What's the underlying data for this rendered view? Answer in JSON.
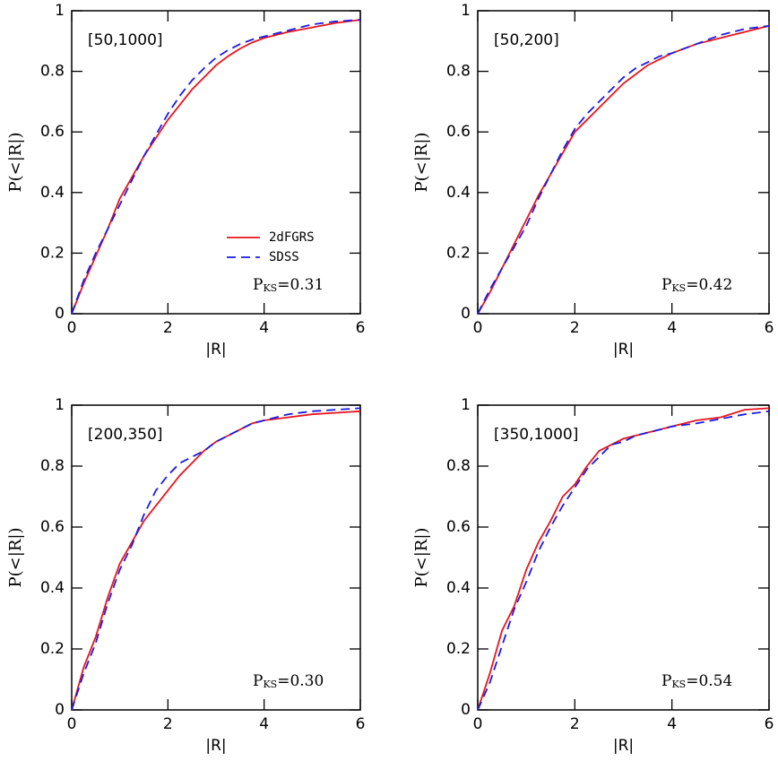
{
  "chart_data": [
    {
      "type": "line",
      "annotation": "[50,1000]",
      "ks_annotation": {
        "symbol": "P",
        "subscript": "KS",
        "value": "=0.31"
      },
      "x_label": "|R|",
      "y_label": "P(<|R|)",
      "x": [
        0,
        0.25,
        0.5,
        0.75,
        1,
        1.25,
        1.5,
        1.75,
        2,
        2.25,
        2.5,
        2.75,
        3,
        3.25,
        3.5,
        3.75,
        4,
        4.5,
        5,
        5.5,
        6
      ],
      "series": [
        {
          "name": "2dFGRS",
          "color": "#e8141c",
          "style": "solid",
          "values": [
            0,
            0.1,
            0.19,
            0.28,
            0.38,
            0.45,
            0.52,
            0.58,
            0.64,
            0.69,
            0.74,
            0.78,
            0.82,
            0.85,
            0.875,
            0.895,
            0.91,
            0.93,
            0.945,
            0.96,
            0.97
          ]
        },
        {
          "name": "SDSS",
          "color": "#1a1ae6",
          "style": "dashed",
          "values": [
            0,
            0.11,
            0.2,
            0.28,
            0.36,
            0.44,
            0.52,
            0.59,
            0.66,
            0.72,
            0.77,
            0.81,
            0.845,
            0.87,
            0.89,
            0.905,
            0.915,
            0.935,
            0.955,
            0.965,
            0.97
          ]
        }
      ],
      "xlim": [
        0,
        6
      ],
      "ylim": [
        0,
        1
      ],
      "xticks": [
        0,
        2,
        4,
        6
      ],
      "yticks": [
        0,
        0.2,
        0.4,
        0.6,
        0.8,
        1
      ]
    },
    {
      "type": "line",
      "annotation": "[50,200]",
      "ks_annotation": {
        "symbol": "P",
        "subscript": "KS",
        "value": "=0.42"
      },
      "x_label": "|R|",
      "y_label": "P(<|R|)",
      "x": [
        0,
        0.25,
        0.5,
        0.75,
        1,
        1.25,
        1.5,
        1.75,
        2,
        2.25,
        2.5,
        2.75,
        3,
        3.25,
        3.5,
        3.75,
        4,
        4.5,
        5,
        5.5,
        6
      ],
      "series": [
        {
          "color": "#e8141c",
          "style": "solid",
          "values": [
            0,
            0.07,
            0.15,
            0.23,
            0.31,
            0.39,
            0.46,
            0.53,
            0.6,
            0.64,
            0.68,
            0.72,
            0.76,
            0.79,
            0.82,
            0.84,
            0.86,
            0.89,
            0.91,
            0.93,
            0.95
          ]
        },
        {
          "color": "#1a1ae6",
          "style": "dashed",
          "values": [
            0,
            0.08,
            0.15,
            0.22,
            0.29,
            0.38,
            0.46,
            0.54,
            0.61,
            0.66,
            0.7,
            0.74,
            0.78,
            0.81,
            0.83,
            0.85,
            0.86,
            0.89,
            0.92,
            0.94,
            0.95
          ]
        }
      ],
      "xlim": [
        0,
        6
      ],
      "ylim": [
        0,
        1
      ],
      "xticks": [
        0,
        2,
        4,
        6
      ],
      "yticks": [
        0,
        0.2,
        0.4,
        0.6,
        0.8,
        1
      ]
    },
    {
      "type": "line",
      "annotation": "[200,350]",
      "ks_annotation": {
        "symbol": "P",
        "subscript": "KS",
        "value": "=0.30"
      },
      "x_label": "|R|",
      "y_label": "P(<|R|)",
      "x": [
        0,
        0.25,
        0.5,
        0.75,
        1,
        1.25,
        1.5,
        1.75,
        2,
        2.25,
        2.5,
        2.75,
        3,
        3.25,
        3.5,
        3.75,
        4,
        4.5,
        5,
        5.5,
        6
      ],
      "series": [
        {
          "color": "#e8141c",
          "style": "solid",
          "values": [
            0,
            0.14,
            0.24,
            0.37,
            0.48,
            0.55,
            0.62,
            0.67,
            0.72,
            0.77,
            0.81,
            0.85,
            0.88,
            0.9,
            0.92,
            0.94,
            0.95,
            0.96,
            0.97,
            0.975,
            0.98
          ]
        },
        {
          "color": "#1a1ae6",
          "style": "dashed",
          "values": [
            0,
            0.12,
            0.22,
            0.35,
            0.46,
            0.54,
            0.64,
            0.72,
            0.77,
            0.81,
            0.83,
            0.85,
            0.88,
            0.9,
            0.92,
            0.94,
            0.95,
            0.97,
            0.98,
            0.985,
            0.99
          ]
        }
      ],
      "xlim": [
        0,
        6
      ],
      "ylim": [
        0,
        1
      ],
      "xticks": [
        0,
        2,
        4,
        6
      ],
      "yticks": [
        0,
        0.2,
        0.4,
        0.6,
        0.8,
        1
      ]
    },
    {
      "type": "line",
      "annotation": "[350,1000]",
      "ks_annotation": {
        "symbol": "P",
        "subscript": "KS",
        "value": "=0.54"
      },
      "x_label": "|R|",
      "y_label": "P(<|R|)",
      "x": [
        0,
        0.25,
        0.5,
        0.75,
        1,
        1.25,
        1.5,
        1.75,
        2,
        2.25,
        2.5,
        2.75,
        3,
        3.25,
        3.5,
        3.75,
        4,
        4.5,
        5,
        5.5,
        6
      ],
      "series": [
        {
          "color": "#e8141c",
          "style": "solid",
          "values": [
            0,
            0.12,
            0.26,
            0.34,
            0.46,
            0.55,
            0.62,
            0.7,
            0.74,
            0.8,
            0.85,
            0.87,
            0.89,
            0.9,
            0.91,
            0.92,
            0.93,
            0.95,
            0.96,
            0.985,
            0.99
          ]
        },
        {
          "color": "#1a1ae6",
          "style": "dashed",
          "values": [
            0,
            0.09,
            0.21,
            0.33,
            0.42,
            0.52,
            0.6,
            0.67,
            0.73,
            0.79,
            0.83,
            0.87,
            0.88,
            0.9,
            0.91,
            0.92,
            0.93,
            0.94,
            0.955,
            0.97,
            0.98
          ]
        }
      ],
      "xlim": [
        0,
        6
      ],
      "ylim": [
        0,
        1
      ],
      "xticks": [
        0,
        2,
        4,
        6
      ],
      "yticks": [
        0,
        0.2,
        0.4,
        0.6,
        0.8,
        1
      ]
    }
  ]
}
